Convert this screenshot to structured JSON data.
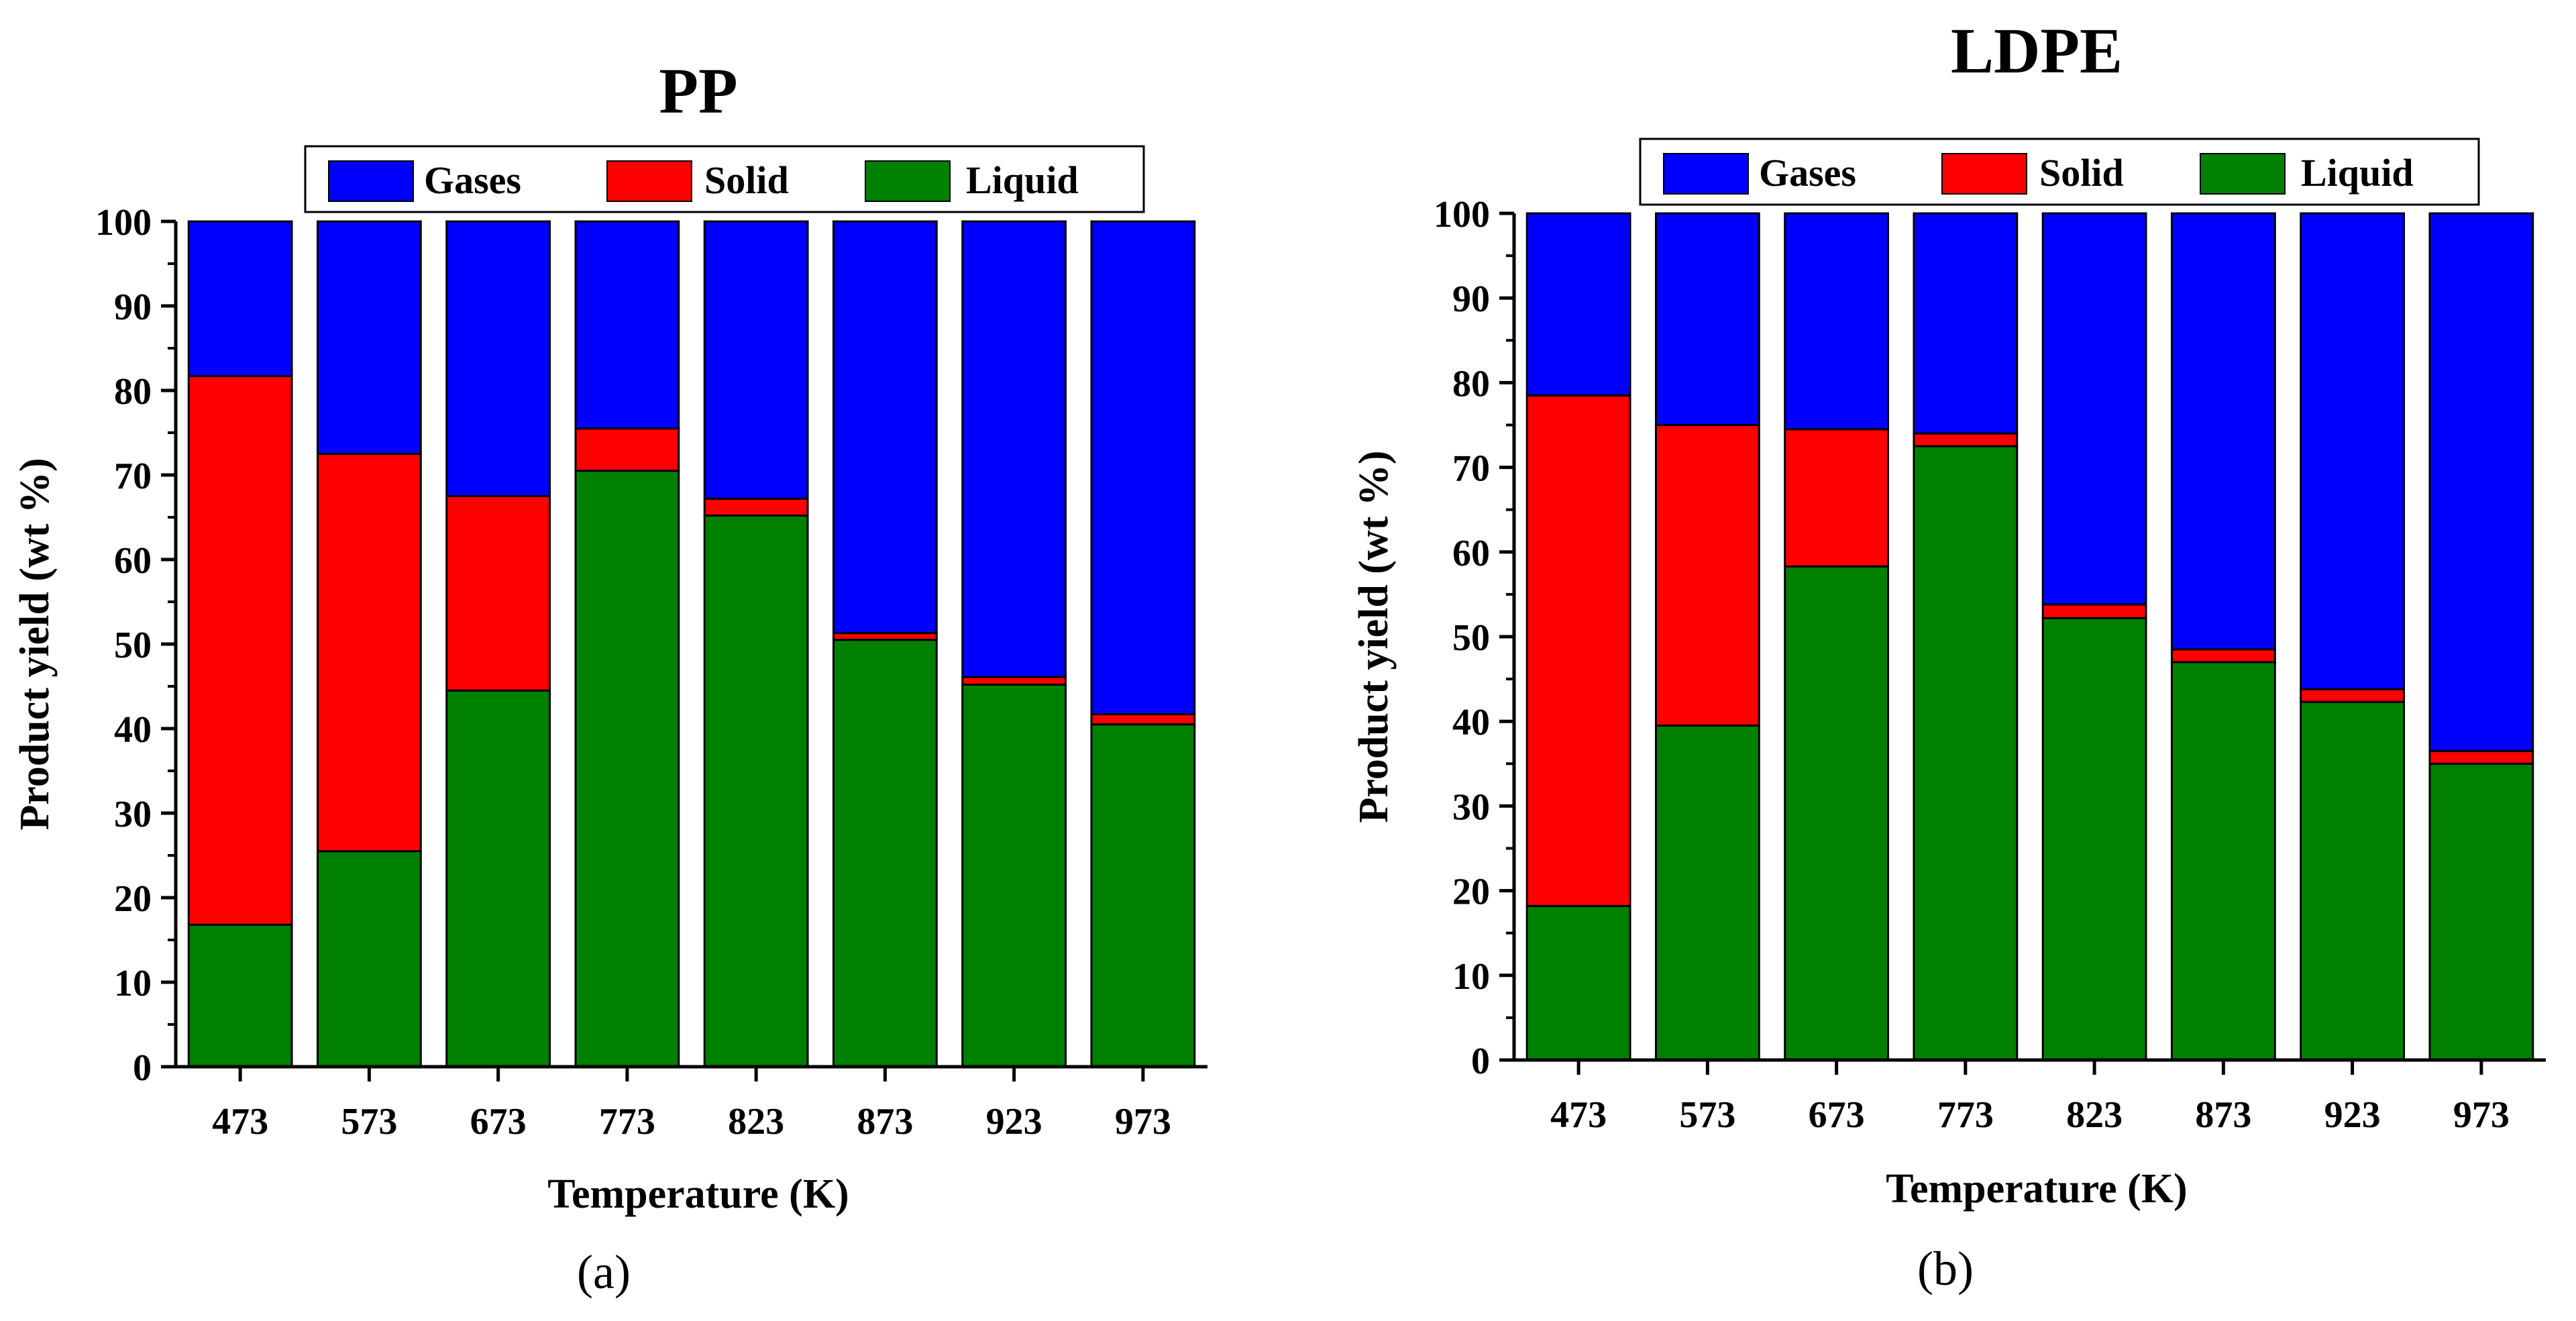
{
  "chart_data": [
    {
      "type": "bar",
      "stacked": true,
      "panel_label": "(a)",
      "title": "PP",
      "xlabel": "Temperature (K)",
      "ylabel": "Product yield (wt %)",
      "ylim": [
        0,
        100
      ],
      "yticks": [
        0,
        10,
        20,
        30,
        40,
        50,
        60,
        70,
        80,
        90,
        100
      ],
      "categories": [
        "473",
        "573",
        "673",
        "773",
        "823",
        "873",
        "923",
        "973"
      ],
      "legend_position": "top",
      "series": [
        {
          "name": "Liquid",
          "color": "#008000",
          "values": [
            16.8,
            25.5,
            44.5,
            70.5,
            65.2,
            50.5,
            45.2,
            40.5
          ]
        },
        {
          "name": "Solid",
          "color": "#ff0000",
          "values": [
            64.9,
            47.0,
            23.0,
            5.0,
            2.0,
            0.8,
            0.9,
            1.2
          ]
        },
        {
          "name": "Gases",
          "color": "#0000ff",
          "values": [
            18.3,
            27.5,
            32.5,
            24.5,
            32.8,
            48.7,
            53.9,
            58.3
          ]
        }
      ],
      "legend_order": [
        "Gases",
        "Solid",
        "Liquid"
      ]
    },
    {
      "type": "bar",
      "stacked": true,
      "panel_label": "(b)",
      "title": "LDPE",
      "xlabel": "Temperature (K)",
      "ylabel": "Product yield (wt %)",
      "ylim": [
        0,
        100
      ],
      "yticks": [
        0,
        10,
        20,
        30,
        40,
        50,
        60,
        70,
        80,
        90,
        100
      ],
      "categories": [
        "473",
        "573",
        "673",
        "773",
        "823",
        "873",
        "923",
        "973"
      ],
      "legend_position": "top",
      "series": [
        {
          "name": "Liquid",
          "color": "#008000",
          "values": [
            18.2,
            39.5,
            58.3,
            72.5,
            52.2,
            47.0,
            42.3,
            35.0
          ]
        },
        {
          "name": "Solid",
          "color": "#ff0000",
          "values": [
            60.3,
            35.5,
            16.2,
            1.5,
            1.6,
            1.5,
            1.5,
            1.5
          ]
        },
        {
          "name": "Gases",
          "color": "#0000ff",
          "values": [
            21.5,
            25.0,
            25.5,
            26.0,
            46.2,
            51.5,
            56.2,
            63.5
          ]
        }
      ],
      "legend_order": [
        "Gases",
        "Solid",
        "Liquid"
      ]
    }
  ]
}
